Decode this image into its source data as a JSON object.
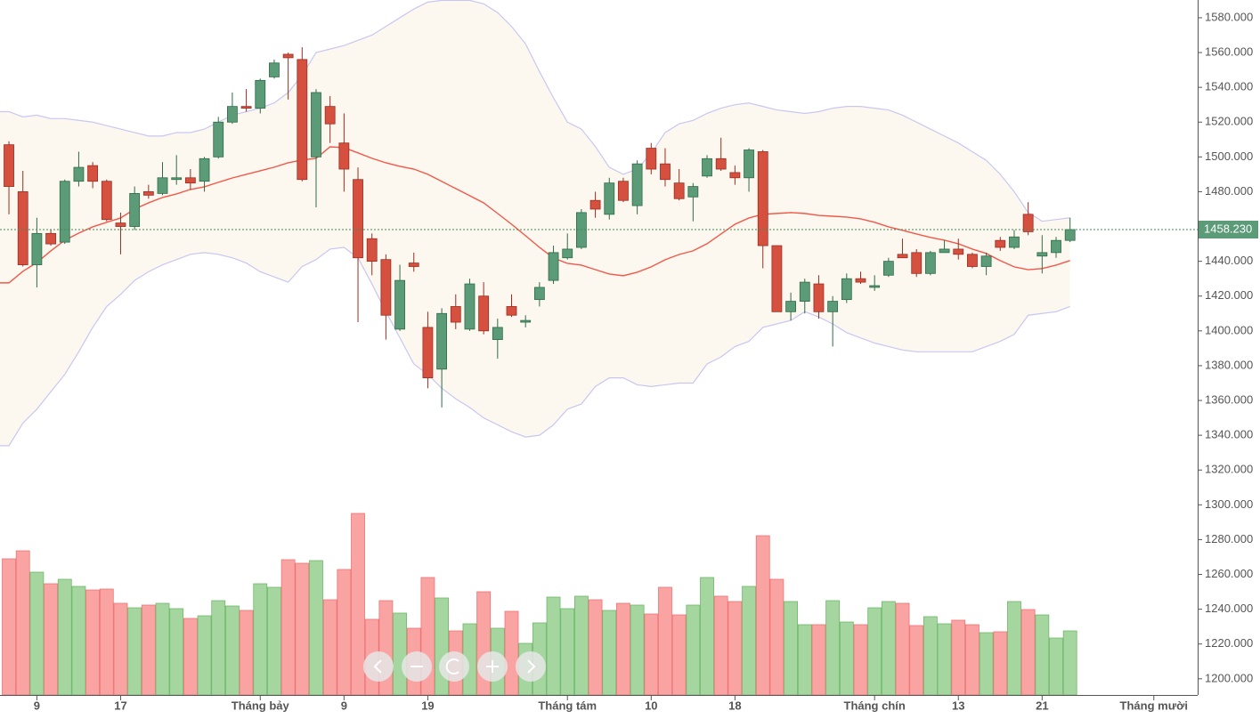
{
  "chart_data": {
    "type": "candlestick",
    "xlim": [
      -0.64,
      85.14
    ],
    "ylim": [
      1190.7,
      1590.2
    ],
    "xticks": [
      {
        "value": 2,
        "label": "9"
      },
      {
        "value": 8,
        "label": "17"
      },
      {
        "value": 18,
        "label": "Tháng bảy"
      },
      {
        "value": 24,
        "label": "9"
      },
      {
        "value": 30,
        "label": "19"
      },
      {
        "value": 40,
        "label": "Tháng tám"
      },
      {
        "value": 46,
        "label": "10"
      },
      {
        "value": 52,
        "label": "18"
      },
      {
        "value": 62,
        "label": "Tháng chín"
      },
      {
        "value": 68,
        "label": "13"
      },
      {
        "value": 74,
        "label": "21"
      },
      {
        "value": 82,
        "label": "Tháng mười"
      }
    ],
    "yticks": [
      {
        "value": 1200,
        "label": "1200.000"
      },
      {
        "value": 1220,
        "label": "1220.000"
      },
      {
        "value": 1240,
        "label": "1240.000"
      },
      {
        "value": 1260,
        "label": "1260.000"
      },
      {
        "value": 1280,
        "label": "1280.000"
      },
      {
        "value": 1300,
        "label": "1300.000"
      },
      {
        "value": 1320,
        "label": "1320.000"
      },
      {
        "value": 1340,
        "label": "1340.000"
      },
      {
        "value": 1360,
        "label": "1360.000"
      },
      {
        "value": 1380,
        "label": "1380.000"
      },
      {
        "value": 1400,
        "label": "1400.000"
      },
      {
        "value": 1420,
        "label": "1420.000"
      },
      {
        "value": 1440,
        "label": "1440.000"
      },
      {
        "value": 1460,
        "label": "1460.000"
      },
      {
        "value": 1480,
        "label": "1480.000"
      },
      {
        "value": 1500,
        "label": "1500.000"
      },
      {
        "value": 1520,
        "label": "1520.000"
      },
      {
        "value": 1540,
        "label": "1540.000"
      },
      {
        "value": 1560,
        "label": "1560.000"
      },
      {
        "value": 1580,
        "label": "1580.000"
      }
    ],
    "last_price": {
      "value": 1458.23,
      "label": "1458.230"
    },
    "up_color": "#5b9b77",
    "down_color": "#d6503f",
    "volume_up_color": "#a5d6a0",
    "volume_down_color": "#f9a3a3",
    "ma_color": "#f2584a",
    "band_color": "#c9c6f2",
    "band_fill": "#fdf8ef",
    "open": [
      1507,
      1480,
      1438,
      1456,
      1451,
      1486,
      1495,
      1486,
      1462,
      1460,
      1480,
      1479,
      1487,
      1488,
      1486,
      1500,
      1520,
      1529,
      1528,
      1546,
      1559,
      1556,
      1500,
      1529,
      1508,
      1487,
      1453,
      1441,
      1401,
      1439,
      1402,
      1378,
      1414,
      1401,
      1420,
      1395,
      1414,
      1405,
      1418,
      1429,
      1442,
      1448,
      1475,
      1467,
      1486,
      1472,
      1505,
      1496,
      1485,
      1477,
      1489,
      1499,
      1491,
      1488,
      1503,
      1449,
      1411,
      1417,
      1427,
      1411,
      1418,
      1430,
      1425,
      1432,
      1444,
      1445,
      1433,
      1445,
      1447,
      1444,
      1437,
      1452,
      1448,
      1467,
      1443,
      1445,
      1452
    ],
    "high": [
      1509,
      1492,
      1465,
      1458,
      1487,
      1503,
      1497,
      1487,
      1468,
      1483,
      1484,
      1497,
      1501,
      1493,
      1500,
      1523,
      1537,
      1539,
      1545,
      1556,
      1560,
      1563,
      1539,
      1535,
      1525,
      1494,
      1456,
      1444,
      1438,
      1445,
      1411,
      1413,
      1421,
      1430,
      1428,
      1407,
      1421,
      1409,
      1428,
      1449,
      1456,
      1470,
      1480,
      1488,
      1488,
      1498,
      1508,
      1505,
      1493,
      1485,
      1501,
      1511,
      1495,
      1505,
      1504,
      1449,
      1422,
      1430,
      1432,
      1420,
      1433,
      1434,
      1432,
      1442,
      1453,
      1447,
      1446,
      1452,
      1453,
      1445,
      1445,
      1454,
      1458,
      1474,
      1455,
      1454,
      1465
    ],
    "low": [
      1467,
      1437,
      1425,
      1449,
      1450,
      1483,
      1482,
      1463,
      1444,
      1458,
      1476,
      1478,
      1484,
      1481,
      1480,
      1499,
      1519,
      1526,
      1525,
      1545,
      1533,
      1486,
      1471,
      1508,
      1480,
      1405,
      1432,
      1395,
      1400,
      1434,
      1367,
      1356,
      1401,
      1400,
      1398,
      1384,
      1408,
      1402,
      1414,
      1427,
      1441,
      1447,
      1465,
      1464,
      1474,
      1467,
      1490,
      1483,
      1475,
      1463,
      1488,
      1492,
      1484,
      1480,
      1436,
      1411,
      1406,
      1410,
      1407,
      1391,
      1416,
      1427,
      1423,
      1431,
      1442,
      1431,
      1432,
      1445,
      1441,
      1436,
      1432,
      1446,
      1447,
      1455,
      1433,
      1442,
      1451
    ],
    "close": [
      1483,
      1438,
      1456,
      1450,
      1486,
      1494,
      1486,
      1464,
      1460,
      1479,
      1478,
      1488,
      1488,
      1485,
      1499,
      1520,
      1529,
      1528,
      1544,
      1554,
      1557,
      1487,
      1537,
      1519,
      1493,
      1442,
      1440,
      1409,
      1429,
      1437,
      1373,
      1410,
      1405,
      1427,
      1400,
      1402,
      1409,
      1406,
      1425,
      1445,
      1447,
      1468,
      1470,
      1485,
      1475,
      1496,
      1493,
      1487,
      1476,
      1483,
      1499,
      1493,
      1488,
      1504,
      1449,
      1411,
      1417,
      1428,
      1411,
      1417,
      1430,
      1428,
      1426,
      1440,
      1442,
      1433,
      1445,
      1447,
      1444,
      1437,
      1443,
      1448,
      1454,
      1457,
      1445,
      1452,
      1458.23
    ],
    "volume": [
      153,
      162,
      138,
      125,
      130,
      122,
      118,
      119,
      103,
      98,
      101,
      103,
      97,
      86,
      89,
      106,
      100,
      95,
      125,
      121,
      152,
      148,
      151,
      107,
      141,
      204,
      85,
      106,
      92,
      75,
      132,
      109,
      72,
      80,
      116,
      75,
      94,
      58,
      81,
      110,
      97,
      111,
      107,
      95,
      103,
      101,
      91,
      121,
      90,
      101,
      132,
      111,
      105,
      122,
      179,
      130,
      105,
      79,
      79,
      106,
      82,
      79,
      98,
      105,
      103,
      78,
      88,
      80,
      84,
      79,
      70,
      71,
      105,
      96,
      90,
      64,
      72
    ],
    "ma": [
      1427.6,
      1434.2,
      1439.3,
      1446,
      1452.1,
      1456.2,
      1459.8,
      1462.4,
      1464.9,
      1470,
      1473.6,
      1476.7,
      1478.7,
      1481.3,
      1482.8,
      1485.4,
      1487.9,
      1490,
      1492,
      1494.1,
      1496.6,
      1498.2,
      1499.2,
      1505.8,
      1505.3,
      1502.3,
      1499.2,
      1496.6,
      1494.6,
      1493,
      1490,
      1485.9,
      1481.8,
      1477.7,
      1473.6,
      1467.5,
      1461.3,
      1454.7,
      1448,
      1441.9,
      1438.8,
      1437.8,
      1435.2,
      1432.7,
      1431.7,
      1433.7,
      1436.8,
      1440.9,
      1443.9,
      1446,
      1450.1,
      1455.7,
      1461.3,
      1464.9,
      1467,
      1467.5,
      1468,
      1467.5,
      1466.4,
      1465.9,
      1465.4,
      1464.4,
      1462.4,
      1459.8,
      1457.8,
      1455.7,
      1453.7,
      1452.1,
      1450.1,
      1447,
      1444.5,
      1440.4,
      1436.8,
      1435.2,
      1435.8,
      1437.8,
      1440.4
    ],
    "upper_band": [
      1526,
      1523,
      1524,
      1522,
      1522,
      1521,
      1520,
      1518,
      1516,
      1514,
      1512,
      1512,
      1514,
      1514,
      1516,
      1520,
      1524,
      1526,
      1528,
      1531,
      1537,
      1547,
      1560,
      1562,
      1564,
      1567,
      1570,
      1575,
      1580,
      1585,
      1589,
      1590,
      1590,
      1590,
      1588,
      1583,
      1575,
      1565,
      1549,
      1534,
      1520,
      1516,
      1506,
      1494,
      1490,
      1493,
      1502,
      1514,
      1519,
      1521,
      1525,
      1528,
      1530,
      1531,
      1529,
      1527,
      1526,
      1525,
      1526,
      1528,
      1529,
      1529,
      1528,
      1527,
      1524,
      1520,
      1516,
      1512,
      1508,
      1503,
      1498,
      1490,
      1480,
      1468,
      1463,
      1464,
      1465
    ],
    "lower_band": [
      1334,
      1347,
      1355,
      1365,
      1375,
      1388,
      1402,
      1414,
      1421,
      1429,
      1434,
      1438,
      1441,
      1444,
      1445,
      1444,
      1442,
      1439,
      1434,
      1431,
      1428,
      1437,
      1441,
      1447,
      1448,
      1442,
      1427,
      1411,
      1396,
      1381,
      1375,
      1367,
      1361,
      1356,
      1350,
      1346,
      1342,
      1339,
      1340,
      1346,
      1355,
      1358,
      1368,
      1373,
      1373,
      1369,
      1368,
      1369,
      1370,
      1370,
      1381,
      1385,
      1391,
      1394,
      1402,
      1404,
      1406,
      1411,
      1408,
      1404,
      1399,
      1396,
      1393,
      1391,
      1389,
      1388,
      1388,
      1388,
      1388,
      1388,
      1391,
      1394,
      1398,
      1409,
      1410,
      1411,
      1414
    ]
  }
}
